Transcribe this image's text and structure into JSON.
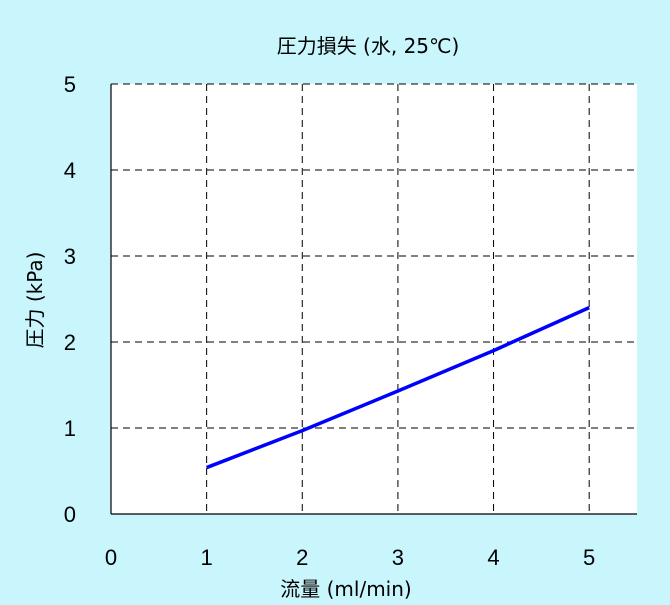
{
  "chart_data": {
    "type": "line",
    "title": "圧力損失 (水, 25℃)",
    "xlabel": "流量 (ml/min)",
    "ylabel": "圧力 (kPa)",
    "xlim": [
      0,
      5.5
    ],
    "ylim": [
      0,
      5
    ],
    "x_ticks": [
      "0",
      "1",
      "2",
      "3",
      "4",
      "5"
    ],
    "y_ticks": [
      "0",
      "1",
      "2",
      "3",
      "4",
      "5"
    ],
    "grid": true,
    "series": [
      {
        "x": [
          1,
          2,
          3,
          4,
          5
        ],
        "y": [
          0.54,
          0.97,
          1.43,
          1.9,
          2.4
        ]
      }
    ]
  },
  "colors": {
    "panel_background": "#c9f5fd",
    "plot_background": "#ffffff",
    "grid": "#000000",
    "line": "#0000ff"
  }
}
